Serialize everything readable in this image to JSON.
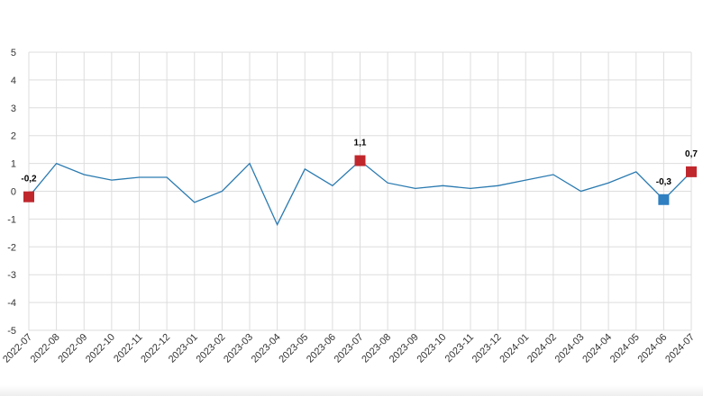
{
  "chart_data": {
    "type": "line",
    "categories": [
      "2022-07",
      "2022-08",
      "2022-09",
      "2022-10",
      "2022-11",
      "2022-12",
      "2023-01",
      "2023-02",
      "2023-03",
      "2023-04",
      "2023-05",
      "2023-06",
      "2023-07",
      "2023-08",
      "2023-09",
      "2023-10",
      "2023-11",
      "2023-12",
      "2024-01",
      "2024-02",
      "2024-03",
      "2024-04",
      "2024-05",
      "2024-06",
      "2024-07"
    ],
    "series": [
      {
        "values": [
          -0.2,
          1.0,
          0.6,
          0.4,
          0.5,
          0.5,
          -0.4,
          0.0,
          1.0,
          -1.2,
          0.8,
          0.2,
          1.1,
          0.3,
          0.1,
          0.2,
          0.1,
          0.2,
          0.4,
          0.6,
          0.0,
          0.3,
          0.7,
          -0.3,
          0.7
        ],
        "color": "#2a7ab0"
      }
    ],
    "ylim": [
      -5,
      5
    ],
    "yticks": [
      5,
      4,
      3,
      2,
      1,
      0,
      -1,
      -2,
      -3,
      -4,
      -5
    ],
    "grid": true,
    "markers": [
      {
        "index": 0,
        "label": "-0,2",
        "color": "#c0272d"
      },
      {
        "index": 12,
        "label": "1,1",
        "color": "#c0272d"
      },
      {
        "index": 23,
        "label": "-0,3",
        "color": "#2f7fc1"
      },
      {
        "index": 24,
        "label": "0,7",
        "color": "#c0272d"
      }
    ]
  }
}
